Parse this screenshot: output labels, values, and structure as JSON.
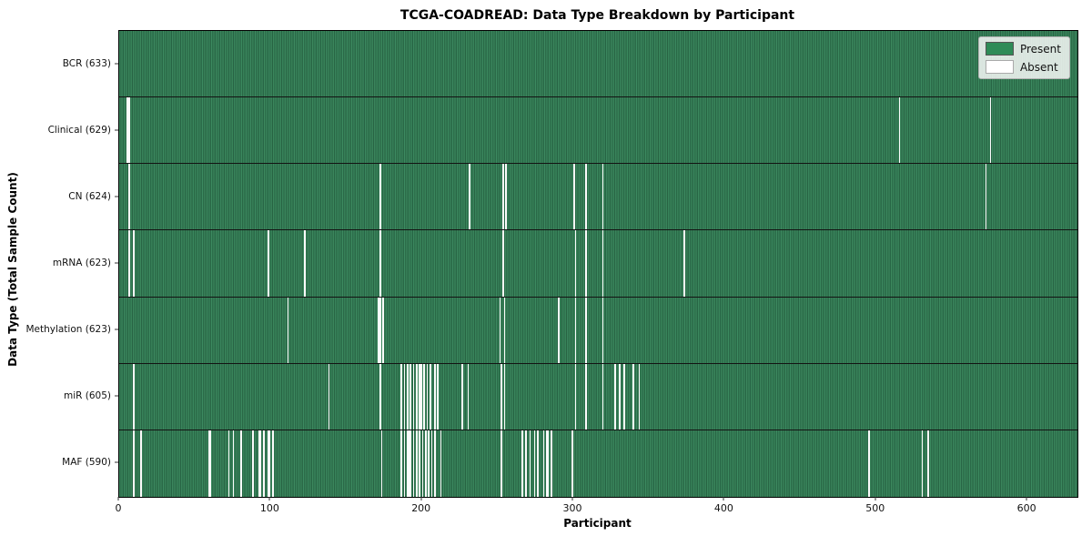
{
  "chart_data": {
    "type": "heatmap",
    "title": "TCGA-COADREAD: Data Type Breakdown by Participant",
    "xlabel": "Participant",
    "ylabel": "Data Type (Total Sample Count)",
    "x_ticks": [
      0,
      100,
      200,
      300,
      400,
      500,
      600
    ],
    "x_range": [
      0,
      633
    ],
    "n_participants": 633,
    "grid": false,
    "legend_position": "upper right",
    "legend": [
      {
        "label": "Present",
        "color": "#2e8b57"
      },
      {
        "label": "Absent",
        "color": "#ffffff"
      }
    ],
    "colors": {
      "present_light": "#3f8f63",
      "present_dark": "#1f5839",
      "absent": "#fbfbfb",
      "row_separator": "#131313"
    },
    "rows": [
      {
        "label": "BCR (633)",
        "data_type": "BCR",
        "total_samples": 633,
        "absent_participants": []
      },
      {
        "label": "Clinical (629)",
        "data_type": "Clinical",
        "total_samples": 629,
        "absent_participants": [
          5,
          6,
          515,
          575
        ]
      },
      {
        "label": "CN (624)",
        "data_type": "CN",
        "total_samples": 624,
        "absent_participants": [
          6,
          172,
          231,
          253,
          255,
          300,
          308,
          319,
          572
        ]
      },
      {
        "label": "mRNA (623)",
        "data_type": "mRNA",
        "total_samples": 623,
        "absent_participants": [
          6,
          9,
          98,
          122,
          172,
          253,
          301,
          308,
          319,
          373
        ]
      },
      {
        "label": "Methylation (623)",
        "data_type": "Methylation",
        "total_samples": 623,
        "absent_participants": [
          111,
          171,
          172,
          174,
          251,
          254,
          290,
          301,
          308,
          319
        ]
      },
      {
        "label": "miR (605)",
        "data_type": "miR",
        "total_samples": 605,
        "absent_participants": [
          9,
          138,
          172,
          186,
          188,
          190,
          192,
          194,
          196,
          198,
          199,
          201,
          203,
          205,
          208,
          210,
          226,
          230,
          252,
          254,
          301,
          308,
          319,
          327,
          330,
          333,
          339,
          343
        ]
      },
      {
        "label": "MAF (590)",
        "data_type": "MAF",
        "total_samples": 590,
        "absent_participants": [
          9,
          14,
          59,
          60,
          72,
          75,
          80,
          88,
          92,
          93,
          95,
          98,
          99,
          101,
          173,
          186,
          188,
          190,
          191,
          192,
          194,
          196,
          198,
          200,
          202,
          204,
          206,
          208,
          212,
          252,
          266,
          268,
          271,
          274,
          276,
          280,
          282,
          283,
          285,
          299,
          495,
          530,
          534
        ]
      }
    ]
  }
}
